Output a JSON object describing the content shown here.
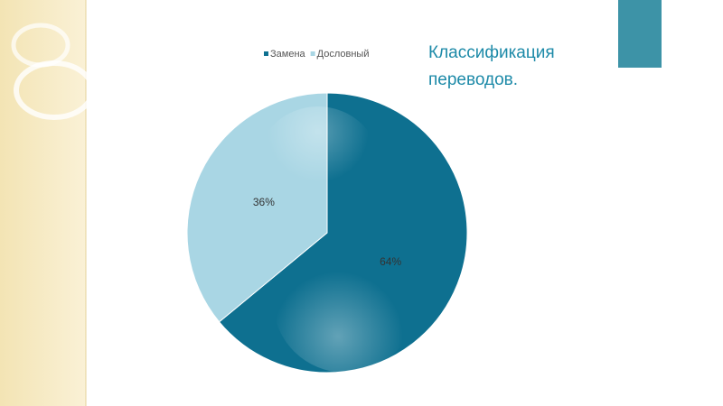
{
  "chart_data": {
    "type": "pie",
    "title": "Классификация переводов.",
    "categories": [
      "Замена",
      "Дословный"
    ],
    "values": [
      64,
      36
    ],
    "value_labels": [
      "64%",
      "36%"
    ],
    "colors": [
      "#0e7090",
      "#a9d6e4"
    ],
    "legend": "top"
  }
}
